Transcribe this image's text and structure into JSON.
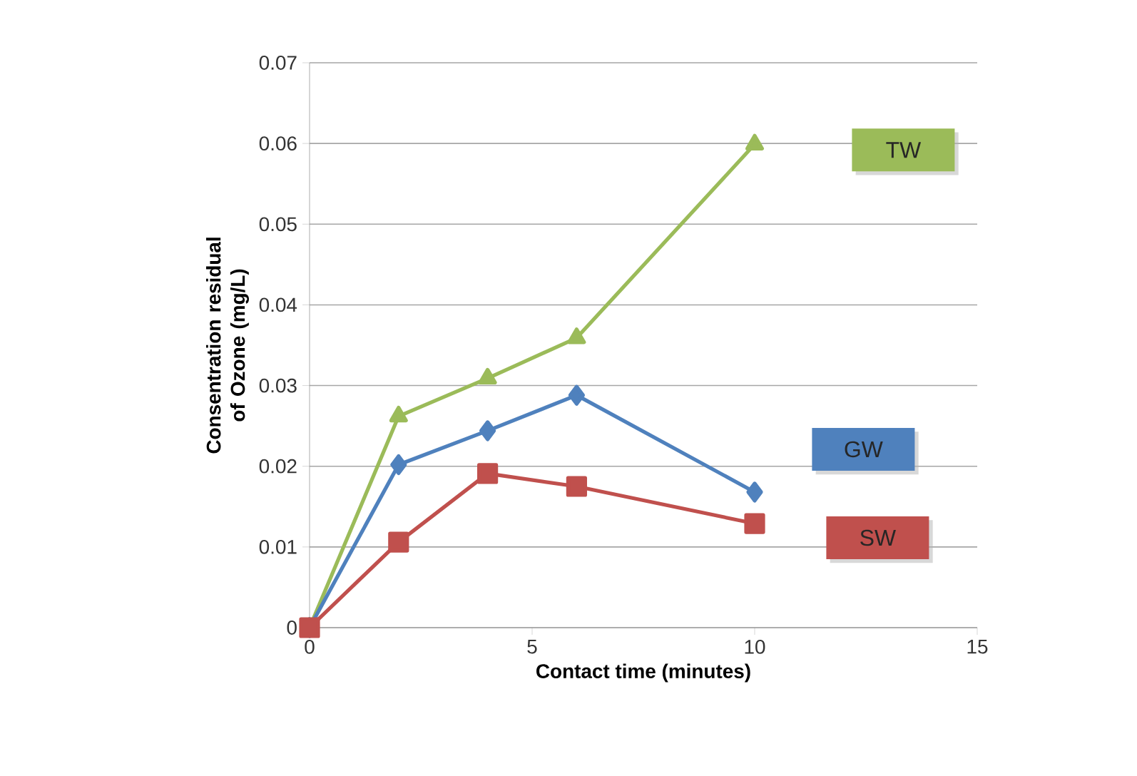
{
  "chart_data": {
    "type": "line",
    "xlabel": "Contact time (minutes)",
    "ylabel": "Consentration residual of Ozone (mg/L)",
    "xlim": [
      0,
      15
    ],
    "xticks": [
      0,
      5,
      10,
      15
    ],
    "ylim": [
      0,
      0.07
    ],
    "yticks": [
      0,
      0.01,
      0.02,
      0.03,
      0.04,
      0.05,
      0.06,
      0.07
    ],
    "grid": "y",
    "legend": false,
    "x": [
      0,
      2,
      4,
      6,
      10
    ],
    "series": [
      {
        "name": "TW",
        "color": "#9bbb59",
        "marker": "triangle",
        "values": [
          0,
          0.0262,
          0.0309,
          0.0359,
          0.0599
        ]
      },
      {
        "name": "GW",
        "color": "#4f81bd",
        "marker": "diamond",
        "values": [
          0,
          0.0202,
          0.0244,
          0.0288,
          0.0168
        ]
      },
      {
        "name": "SW",
        "color": "#c0504d",
        "marker": "square",
        "values": [
          0,
          0.0106,
          0.0191,
          0.0175,
          0.0129
        ]
      }
    ]
  }
}
